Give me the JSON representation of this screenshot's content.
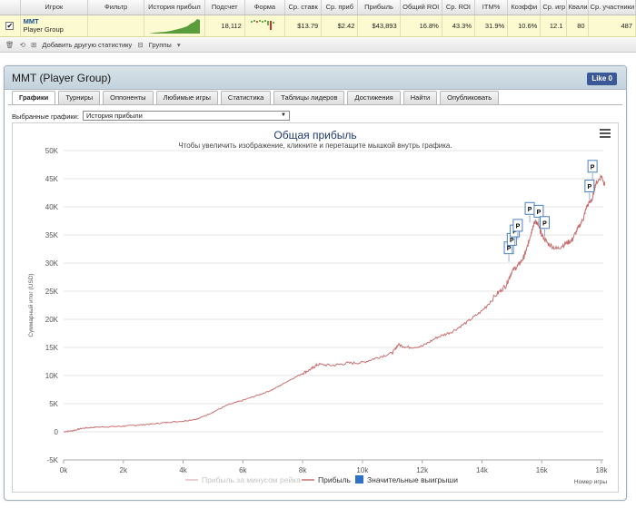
{
  "table": {
    "headers": [
      "Игрок",
      "Фильтр",
      "История прибыл",
      "Подсчет",
      "Форма",
      "Ср. ставк",
      "Ср. приб",
      "Прибыль",
      "Общий ROI",
      "Ср. ROI",
      "ITM%",
      "Коэффи",
      "Ср. игр",
      "Квали",
      "Ср. участники"
    ],
    "row": {
      "checkbox": "✔",
      "player_name": "MMT",
      "player_group": "Player Group",
      "count": "18,112",
      "avg_stake": "$13.79",
      "avg_profit": "$2.42",
      "profit": "$43,893",
      "total_roi": "16.8%",
      "avg_roi": "43.3%",
      "itm": "31.9%",
      "coeff": "10.6%",
      "avg_games": "12.1",
      "quali": "80",
      "avg_participants": "487"
    }
  },
  "toolbar": {
    "add_stat": "Добавить другую статистику",
    "groups": "Группы"
  },
  "panel": {
    "title": "MMT (Player Group)",
    "like": "Like 0",
    "tabs": [
      "Графики",
      "Турниры",
      "Оппоненты",
      "Любимые игры",
      "Статистика",
      "Таблицы лидеров",
      "Достижения",
      "Найти",
      "Опубликовать"
    ],
    "active_tab": 0,
    "select_label": "Выбранные графики:",
    "select_value": "История прибыли"
  },
  "colors": {
    "profit_line": "#c87070",
    "rake_line": "#e2c0c0",
    "flag_border": "#4a7fc1",
    "significant": "#2f6fc4"
  },
  "chart_data": {
    "type": "line",
    "title": "Общая прибыль",
    "subtitle": "Чтобы увеличить изображение, кликните и перетащите мышкой внутрь графика.",
    "ylabel": "Суммарный итог (USD)",
    "xlabel": "Номер игры",
    "xlim": [
      0,
      18112
    ],
    "ylim": [
      -5000,
      50000
    ],
    "x_ticks": [
      "0k",
      "2k",
      "4k",
      "6k",
      "8k",
      "10k",
      "12k",
      "14k",
      "16k",
      "18k"
    ],
    "y_ticks": [
      "-5K",
      "0",
      "5K",
      "10K",
      "15K",
      "20K",
      "25K",
      "30K",
      "35K",
      "40K",
      "45K",
      "50K"
    ],
    "grid": true,
    "legend": [
      "Прибыль за минусом рейка",
      "Прибыль",
      "Значительные выигрыши"
    ],
    "legend_position": "bottom",
    "series": [
      {
        "name": "Прибыль",
        "x": [
          0,
          300,
          600,
          1000,
          1500,
          2000,
          2500,
          3000,
          3500,
          4000,
          4500,
          5000,
          5500,
          6000,
          6500,
          7000,
          7500,
          8000,
          8300,
          8500,
          9000,
          9500,
          10000,
          10500,
          11000,
          11200,
          11500,
          12000,
          12500,
          13000,
          13500,
          14000,
          14500,
          14800,
          15000,
          15200,
          15400,
          15500,
          15600,
          15700,
          15800,
          15900,
          16000,
          16200,
          16500,
          16800,
          17000,
          17200,
          17400,
          17500,
          17700,
          17800,
          18000,
          18112
        ],
        "y": [
          0,
          200,
          600,
          800,
          900,
          1000,
          1200,
          1400,
          1700,
          1900,
          2300,
          3500,
          4800,
          5600,
          6500,
          7500,
          9000,
          10400,
          11200,
          12000,
          11800,
          12200,
          12300,
          13200,
          14000,
          15500,
          15000,
          15200,
          16800,
          17800,
          19500,
          21500,
          24500,
          26000,
          28500,
          29500,
          31000,
          32500,
          34500,
          36500,
          37500,
          36500,
          35000,
          33500,
          32500,
          33500,
          34000,
          36000,
          38000,
          40000,
          41500,
          44000,
          45500,
          43893
        ]
      }
    ],
    "significant_wins": [
      {
        "x": 14900,
        "y": 31500
      },
      {
        "x": 15000,
        "y": 33000
      },
      {
        "x": 15100,
        "y": 34500
      },
      {
        "x": 15200,
        "y": 35500
      },
      {
        "x": 15600,
        "y": 38500
      },
      {
        "x": 15900,
        "y": 38000
      },
      {
        "x": 16100,
        "y": 36000
      },
      {
        "x": 17600,
        "y": 42500
      },
      {
        "x": 17700,
        "y": 46000
      }
    ],
    "flag_label": "P"
  }
}
